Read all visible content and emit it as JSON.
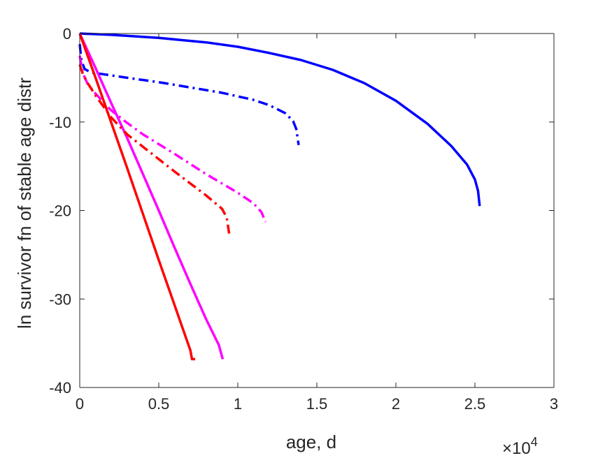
{
  "chart_data": {
    "type": "line",
    "title": "",
    "xlabel": "age, d",
    "ylabel": "ln survivor fn of stable age distr",
    "x_multiplier_label": "×10",
    "x_multiplier_exponent": "4",
    "xlim": [
      0,
      30000
    ],
    "ylim": [
      -40,
      0
    ],
    "xticks": [
      0,
      5000,
      10000,
      15000,
      20000,
      25000,
      30000
    ],
    "xtick_labels": [
      "0",
      "0.5",
      "1",
      "1.5",
      "2",
      "2.5",
      "3"
    ],
    "yticks": [
      0,
      -10,
      -20,
      -30,
      -40
    ],
    "ytick_labels": [
      "0",
      "-10",
      "-20",
      "-30",
      "-40"
    ],
    "grid": false,
    "legend": "none",
    "series": [
      {
        "color": "#0000ff",
        "style": "solid",
        "points": [
          [
            0,
            0
          ],
          [
            2000,
            -0.15
          ],
          [
            5000,
            -0.5
          ],
          [
            8000,
            -1.0
          ],
          [
            10000,
            -1.5
          ],
          [
            12000,
            -2.2
          ],
          [
            14000,
            -3.0
          ],
          [
            16000,
            -4.1
          ],
          [
            18000,
            -5.6
          ],
          [
            20000,
            -7.6
          ],
          [
            22000,
            -10.2
          ],
          [
            23500,
            -12.7
          ],
          [
            24500,
            -14.8
          ],
          [
            25000,
            -16.5
          ],
          [
            25200,
            -17.8
          ],
          [
            25300,
            -19.5
          ]
        ]
      },
      {
        "color": "#0000ff",
        "style": "dashdot",
        "points": [
          [
            0,
            -1.2
          ],
          [
            100,
            -3.0
          ],
          [
            300,
            -4.0
          ],
          [
            700,
            -4.4
          ],
          [
            1500,
            -4.6
          ],
          [
            3000,
            -5.0
          ],
          [
            5000,
            -5.5
          ],
          [
            7000,
            -6.1
          ],
          [
            9000,
            -6.7
          ],
          [
            11000,
            -7.5
          ],
          [
            12000,
            -8.1
          ],
          [
            13000,
            -9.0
          ],
          [
            13500,
            -9.9
          ],
          [
            13700,
            -10.8
          ],
          [
            13850,
            -12.6
          ]
        ]
      },
      {
        "color": "#ff00ff",
        "style": "solid",
        "points": [
          [
            0,
            0
          ],
          [
            1000,
            -3.9
          ],
          [
            2000,
            -7.9
          ],
          [
            3000,
            -11.8
          ],
          [
            4000,
            -15.9
          ],
          [
            5000,
            -20.0
          ],
          [
            6000,
            -24.2
          ],
          [
            7000,
            -28.3
          ],
          [
            8000,
            -32.3
          ],
          [
            8800,
            -35.2
          ],
          [
            9000,
            -36.5
          ],
          [
            9050,
            -36.8
          ]
        ]
      },
      {
        "color": "#ff00ff",
        "style": "dashdot",
        "points": [
          [
            0,
            -2.5
          ],
          [
            200,
            -4.5
          ],
          [
            500,
            -5.7
          ],
          [
            1000,
            -6.8
          ],
          [
            2000,
            -8.7
          ],
          [
            3000,
            -10.1
          ],
          [
            4000,
            -11.4
          ],
          [
            6000,
            -13.6
          ],
          [
            8000,
            -15.9
          ],
          [
            10000,
            -18.0
          ],
          [
            11000,
            -19.2
          ],
          [
            11500,
            -20.2
          ],
          [
            11750,
            -21.3
          ]
        ]
      },
      {
        "color": "#ff0000",
        "style": "solid",
        "points": [
          [
            0,
            0
          ],
          [
            1000,
            -5.0
          ],
          [
            2000,
            -10.1
          ],
          [
            3000,
            -15.2
          ],
          [
            4000,
            -20.4
          ],
          [
            5000,
            -25.6
          ],
          [
            6000,
            -30.7
          ],
          [
            6800,
            -34.8
          ],
          [
            7000,
            -35.8
          ],
          [
            7100,
            -36.8
          ],
          [
            7300,
            -36.8
          ]
        ]
      },
      {
        "color": "#ff0000",
        "style": "dashdot",
        "points": [
          [
            0,
            -3.5
          ],
          [
            200,
            -4.6
          ],
          [
            500,
            -5.6
          ],
          [
            1000,
            -7.0
          ],
          [
            2000,
            -9.5
          ],
          [
            3000,
            -11.4
          ],
          [
            4000,
            -12.8
          ],
          [
            6000,
            -15.6
          ],
          [
            8000,
            -18.3
          ],
          [
            9000,
            -19.8
          ],
          [
            9300,
            -20.8
          ],
          [
            9450,
            -22.6
          ]
        ]
      }
    ]
  }
}
